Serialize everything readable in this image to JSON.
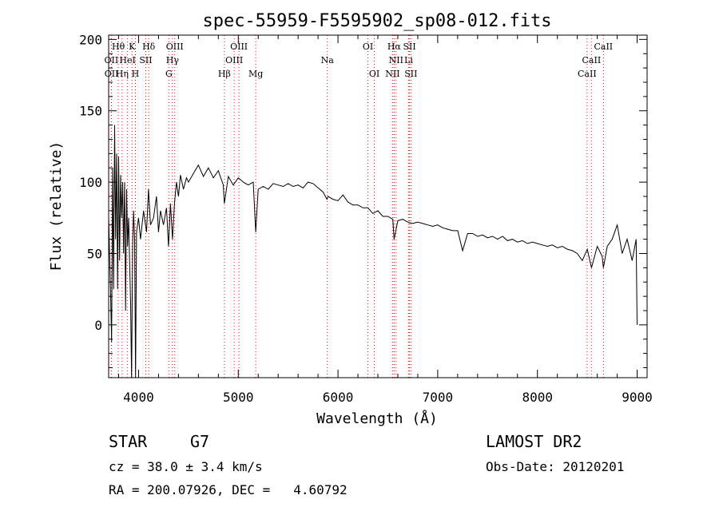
{
  "chart_data": {
    "type": "line",
    "title": "spec-55959-F5595902_sp08-012.fits",
    "xlabel": "Wavelength (Å)",
    "ylabel": "Flux (relative)",
    "xlim": [
      3700,
      9100
    ],
    "ylim": [
      -37,
      203
    ],
    "xticks": [
      4000,
      5000,
      6000,
      7000,
      8000,
      9000
    ],
    "yticks": [
      0,
      50,
      100,
      150,
      200
    ],
    "grid": false,
    "series": [
      {
        "points": [
          [
            3700,
            75
          ],
          [
            3720,
            20
          ],
          [
            3730,
            -12
          ],
          [
            3740,
            110
          ],
          [
            3750,
            25
          ],
          [
            3760,
            140
          ],
          [
            3770,
            60
          ],
          [
            3780,
            120
          ],
          [
            3790,
            25
          ],
          [
            3800,
            118
          ],
          [
            3810,
            45
          ],
          [
            3820,
            105
          ],
          [
            3830,
            75
          ],
          [
            3840,
            100
          ],
          [
            3850,
            50
          ],
          [
            3860,
            100
          ],
          [
            3870,
            10
          ],
          [
            3880,
            95
          ],
          [
            3890,
            55
          ],
          [
            3900,
            75
          ],
          [
            3910,
            45
          ],
          [
            3920,
            15
          ],
          [
            3930,
            -37
          ],
          [
            3940,
            55
          ],
          [
            3950,
            80
          ],
          [
            3960,
            60
          ],
          [
            3970,
            -37
          ],
          [
            3980,
            65
          ],
          [
            4000,
            75
          ],
          [
            4020,
            60
          ],
          [
            4050,
            80
          ],
          [
            4080,
            65
          ],
          [
            4100,
            95
          ],
          [
            4120,
            70
          ],
          [
            4150,
            75
          ],
          [
            4180,
            90
          ],
          [
            4200,
            65
          ],
          [
            4220,
            80
          ],
          [
            4250,
            70
          ],
          [
            4280,
            82
          ],
          [
            4300,
            55
          ],
          [
            4320,
            85
          ],
          [
            4340,
            60
          ],
          [
            4360,
            85
          ],
          [
            4380,
            100
          ],
          [
            4400,
            90
          ],
          [
            4420,
            105
          ],
          [
            4450,
            95
          ],
          [
            4480,
            103
          ],
          [
            4500,
            100
          ],
          [
            4550,
            106
          ],
          [
            4600,
            112
          ],
          [
            4650,
            104
          ],
          [
            4700,
            110
          ],
          [
            4750,
            103
          ],
          [
            4800,
            108
          ],
          [
            4850,
            98
          ],
          [
            4860,
            85
          ],
          [
            4900,
            104
          ],
          [
            4950,
            98
          ],
          [
            5000,
            103
          ],
          [
            5050,
            100
          ],
          [
            5100,
            98
          ],
          [
            5150,
            100
          ],
          [
            5175,
            65
          ],
          [
            5200,
            95
          ],
          [
            5250,
            97
          ],
          [
            5300,
            95
          ],
          [
            5350,
            99
          ],
          [
            5400,
            98
          ],
          [
            5450,
            97
          ],
          [
            5500,
            99
          ],
          [
            5550,
            97
          ],
          [
            5600,
            98
          ],
          [
            5650,
            96
          ],
          [
            5700,
            100
          ],
          [
            5750,
            99
          ],
          [
            5800,
            96
          ],
          [
            5850,
            93
          ],
          [
            5890,
            88
          ],
          [
            5900,
            90
          ],
          [
            5950,
            88
          ],
          [
            6000,
            87
          ],
          [
            6050,
            91
          ],
          [
            6100,
            86
          ],
          [
            6150,
            84
          ],
          [
            6200,
            84
          ],
          [
            6250,
            82
          ],
          [
            6300,
            82
          ],
          [
            6350,
            78
          ],
          [
            6400,
            80
          ],
          [
            6450,
            76
          ],
          [
            6500,
            76
          ],
          [
            6550,
            74
          ],
          [
            6563,
            60
          ],
          [
            6600,
            73
          ],
          [
            6650,
            74
          ],
          [
            6700,
            72
          ],
          [
            6750,
            71
          ],
          [
            6800,
            72
          ],
          [
            6850,
            71
          ],
          [
            6900,
            70
          ],
          [
            6950,
            69
          ],
          [
            7000,
            70
          ],
          [
            7050,
            68
          ],
          [
            7100,
            67
          ],
          [
            7150,
            66
          ],
          [
            7200,
            66
          ],
          [
            7250,
            52
          ],
          [
            7300,
            64
          ],
          [
            7350,
            64
          ],
          [
            7400,
            62
          ],
          [
            7450,
            63
          ],
          [
            7500,
            61
          ],
          [
            7550,
            62
          ],
          [
            7600,
            60
          ],
          [
            7650,
            62
          ],
          [
            7700,
            59
          ],
          [
            7750,
            60
          ],
          [
            7800,
            58
          ],
          [
            7850,
            59
          ],
          [
            7900,
            57
          ],
          [
            7950,
            58
          ],
          [
            8000,
            57
          ],
          [
            8050,
            56
          ],
          [
            8100,
            55
          ],
          [
            8150,
            56
          ],
          [
            8200,
            54
          ],
          [
            8250,
            55
          ],
          [
            8300,
            53
          ],
          [
            8350,
            52
          ],
          [
            8400,
            50
          ],
          [
            8450,
            45
          ],
          [
            8500,
            53
          ],
          [
            8542,
            40
          ],
          [
            8600,
            55
          ],
          [
            8650,
            48
          ],
          [
            8662,
            40
          ],
          [
            8700,
            55
          ],
          [
            8750,
            60
          ],
          [
            8800,
            70
          ],
          [
            8850,
            50
          ],
          [
            8900,
            60
          ],
          [
            8950,
            45
          ],
          [
            8990,
            60
          ],
          [
            9000,
            0
          ]
        ]
      }
    ],
    "lines": [
      {
        "label": "Hθ",
        "x": 3797,
        "row": 1
      },
      {
        "label": "K",
        "x": 3934,
        "row": 1
      },
      {
        "label": "Hδ",
        "x": 4102,
        "row": 1
      },
      {
        "label": "OIII",
        "x": 4363,
        "row": 1
      },
      {
        "label": "OIII",
        "x": 5007,
        "row": 1
      },
      {
        "label": "OI",
        "x": 6300,
        "row": 1
      },
      {
        "label": "Hα",
        "x": 6563,
        "row": 1
      },
      {
        "label": "SII",
        "x": 6717,
        "row": 1
      },
      {
        "label": "CaII",
        "x": 8662,
        "row": 1
      },
      {
        "label": "OII",
        "x": 3727,
        "row": 2
      },
      {
        "label": "HeI",
        "x": 3889,
        "row": 2
      },
      {
        "label": "SII",
        "x": 4072,
        "row": 2
      },
      {
        "label": "Hγ",
        "x": 4340,
        "row": 2
      },
      {
        "label": "OIII",
        "x": 4959,
        "row": 2
      },
      {
        "label": "Na",
        "x": 5893,
        "row": 2
      },
      {
        "label": "NII",
        "x": 6583,
        "row": 2
      },
      {
        "label": "Li",
        "x": 6708,
        "row": 2
      },
      {
        "label": "CaII",
        "x": 8542,
        "row": 2
      },
      {
        "label": "OII",
        "x": 3729,
        "row": 3
      },
      {
        "label": "Hη",
        "x": 3835,
        "row": 3
      },
      {
        "label": "H",
        "x": 3968,
        "row": 3
      },
      {
        "label": "G",
        "x": 4304,
        "row": 3
      },
      {
        "label": "Hβ",
        "x": 4861,
        "row": 3
      },
      {
        "label": "Mg",
        "x": 5175,
        "row": 3
      },
      {
        "label": "OI",
        "x": 6364,
        "row": 3
      },
      {
        "label": "NII",
        "x": 6548,
        "row": 3
      },
      {
        "label": "SII",
        "x": 6731,
        "row": 3
      },
      {
        "label": "CaII",
        "x": 8498,
        "row": 3
      }
    ],
    "line_color": "#ff0000"
  },
  "info": {
    "object_class": "STAR",
    "subclass": "G7",
    "survey": "LAMOST DR2",
    "redshift": "cz = 38.0 ± 3.4 km/s",
    "obs_date": "Obs-Date: 20120201",
    "coords": "RA = 200.07926, DEC =   4.60792"
  }
}
